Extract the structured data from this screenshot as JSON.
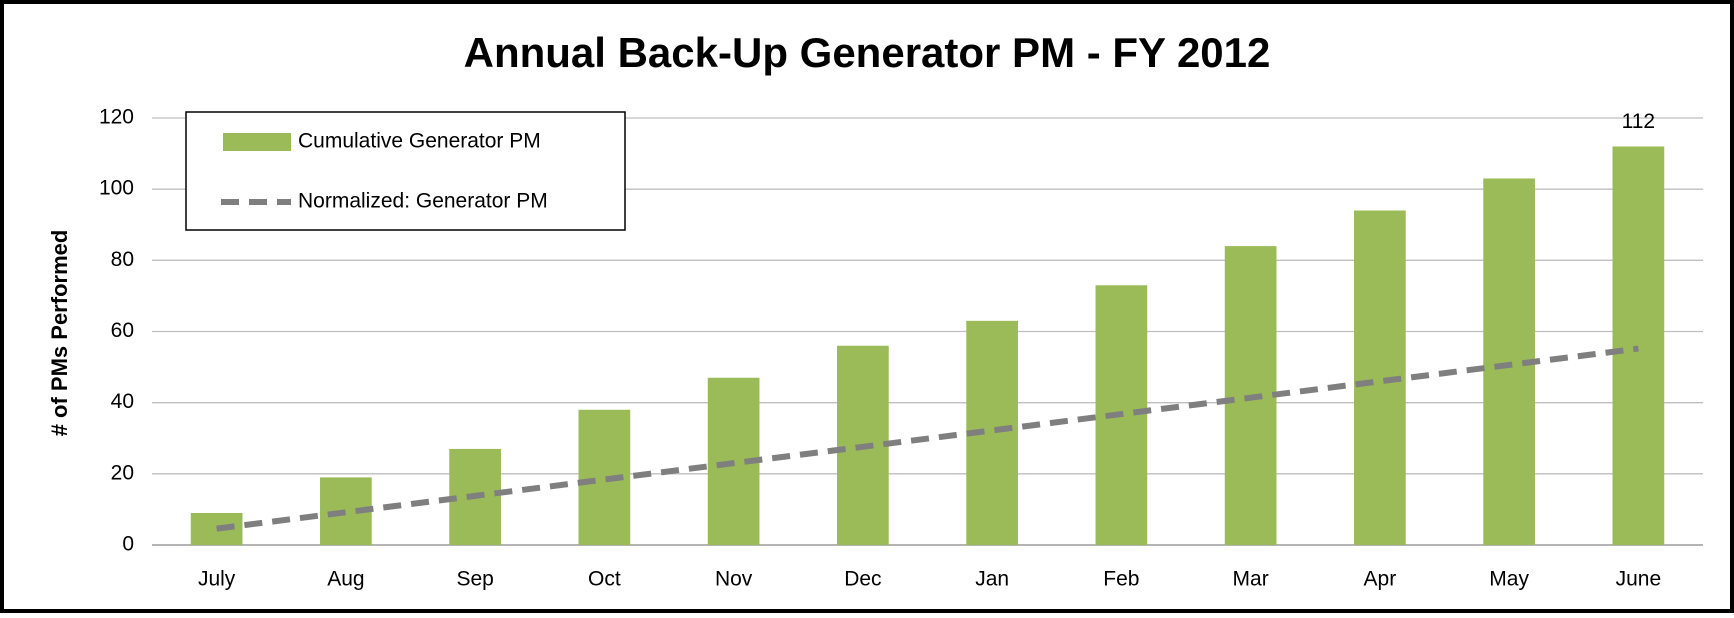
{
  "chart_data": {
    "type": "bar",
    "title": "Annual Back-Up Generator PM - FY 2012",
    "y_label": "# of PMs Performed",
    "categories": [
      "July",
      "Aug",
      "Sep",
      "Oct",
      "Nov",
      "Dec",
      "Jan",
      "Feb",
      "Mar",
      "Apr",
      "May",
      "June"
    ],
    "series": [
      {
        "name": "Cumulative Generator PM",
        "type": "bar",
        "color": "#9bbb59",
        "values": [
          9,
          19,
          27,
          38,
          47,
          56,
          63,
          73,
          84,
          94,
          103,
          112
        ],
        "label_last": true
      },
      {
        "name": "Normalized: Generator PM",
        "type": "line",
        "color": "#7f7f7f",
        "dashed": true,
        "values": [
          4.6,
          9.2,
          13.8,
          18.4,
          23,
          27.6,
          32.2,
          36.8,
          41.4,
          46,
          50.6,
          55.2
        ]
      }
    ],
    "ylim": [
      0,
      120
    ],
    "yticks": [
      0,
      20,
      40,
      60,
      80,
      100,
      120
    ],
    "grid": true,
    "legend": "upper left"
  }
}
